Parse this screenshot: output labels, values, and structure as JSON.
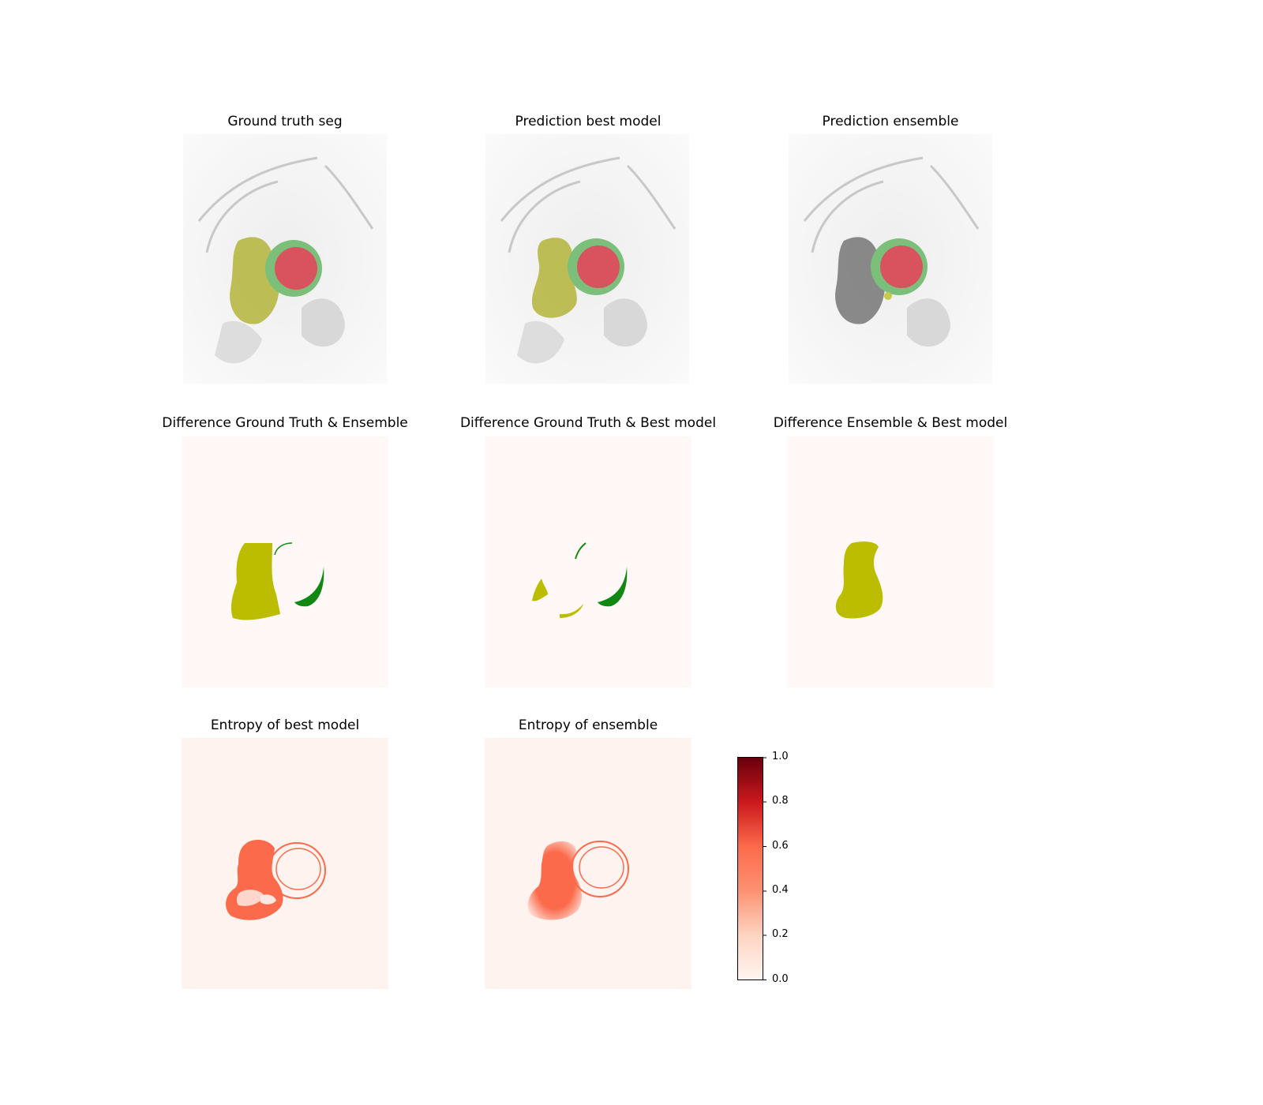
{
  "figure": {
    "panels": [
      {
        "title": "Ground truth seg",
        "kind": "mri-overlay-gt"
      },
      {
        "title": "Prediction best model",
        "kind": "mri-overlay-best"
      },
      {
        "title": "Prediction ensemble",
        "kind": "mri-overlay-ensemble"
      },
      {
        "title": "Difference Ground Truth & Ensemble",
        "kind": "difference-gt-ensemble"
      },
      {
        "title": "Difference Ground Truth & Best model",
        "kind": "difference-gt-best"
      },
      {
        "title": "Difference Ensemble & Best model",
        "kind": "difference-ensemble-best"
      },
      {
        "title": "Entropy of best model",
        "kind": "entropy-best"
      },
      {
        "title": "Entropy of ensemble",
        "kind": "entropy-ensemble"
      }
    ],
    "colorbar": {
      "ticks": [
        "1.0",
        "0.8",
        "0.6",
        "0.4",
        "0.2",
        "0.0"
      ],
      "range": [
        0.0,
        1.0
      ],
      "colormap": "Reds"
    },
    "colors": {
      "background_tint": "#fff8f6",
      "entropy_background": "#fff3f0",
      "yellow_label": "#bcbc00",
      "green_label": "#118811",
      "red_label": "#d93a3a",
      "entropy_mid": "#fb6a4a"
    }
  }
}
